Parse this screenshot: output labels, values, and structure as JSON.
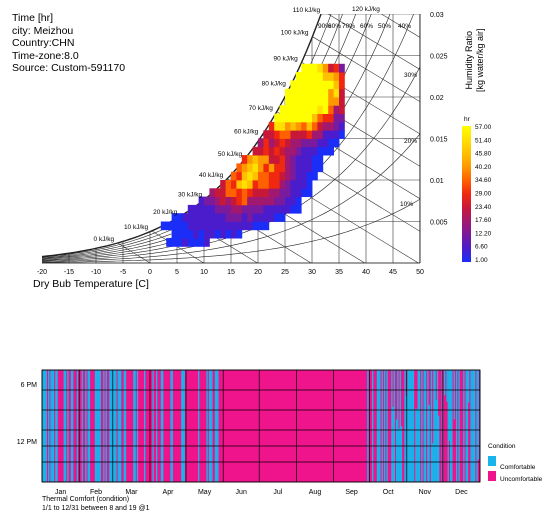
{
  "info": {
    "title": "Time [hr]",
    "city": "city: Meizhou",
    "country": "Country:CHN",
    "timezone": "Time-zone:8.0",
    "source": "Source: Custom-591170"
  },
  "psychro": {
    "xlabel": "Dry Bub Temperature [C]",
    "ylabel_line1": "Humidity Ratio",
    "ylabel_line2": "[kg water/kg air]",
    "x_ticks": [
      "-20",
      "-15",
      "-10",
      "-5",
      "0",
      "5",
      "10",
      "15",
      "20",
      "25",
      "30",
      "35",
      "40",
      "45",
      "50"
    ],
    "y_ticks": [
      "0.03",
      "0.025",
      "0.02",
      "0.015",
      "0.01",
      "0.005"
    ],
    "enthalpy_labels": [
      "0 kJ/kg",
      "10 kJ/kg",
      "20 kJ/kg",
      "30 kJ/kg",
      "40 kJ/kg",
      "50 kJ/kg",
      "60 kJ/kg",
      "70 kJ/kg",
      "80 kJ/kg",
      "90 kJ/kg",
      "100 kJ/kg",
      "110 kJ/kg",
      "120 kJ/kg"
    ],
    "rh_labels": [
      "90%",
      "80%",
      "70%",
      "60%",
      "50%",
      "40%",
      "30%",
      "20%",
      "10%"
    ],
    "legend_title": "hr",
    "legend_values": [
      "57.00",
      "51.40",
      "45.80",
      "40.20",
      "34.60",
      "29.00",
      "23.40",
      "17.60",
      "12.20",
      "6.60",
      "1.00"
    ],
    "legend_colors": [
      "#ffff00",
      "#ffe000",
      "#ffc000",
      "#ff9800",
      "#ff6000",
      "#f02810",
      "#c81838",
      "#a01870",
      "#7a1a9c",
      "#4a1ccc",
      "#1a2ef8"
    ]
  },
  "chart_data": [
    {
      "type": "heatmap",
      "title": "Time [hr]",
      "xlabel": "Dry Bub Temperature [C]",
      "ylabel": "Humidity Ratio [kg water/kg air]",
      "xlim": [
        -20,
        50
      ],
      "ylim": [
        0,
        0.03
      ],
      "colorbar": {
        "label": "hr",
        "min": 1.0,
        "max": 57.0
      },
      "hot_spots": [
        {
          "x": 27,
          "y": 0.02,
          "hours": 57
        },
        {
          "x": 29,
          "y": 0.021,
          "hours": 50
        },
        {
          "x": 25,
          "y": 0.018,
          "hours": 40
        },
        {
          "x": 20,
          "y": 0.011,
          "hours": 30
        },
        {
          "x": 16,
          "y": 0.009,
          "hours": 25
        }
      ]
    },
    {
      "type": "heatmap",
      "title": "Thermal Comfort (condition)",
      "subtitle": "1/1 to 12/31 between 8 and 19 @1",
      "x_categories": [
        "Jan",
        "Feb",
        "Mar",
        "Apr",
        "May",
        "Jun",
        "Jul",
        "Aug",
        "Sep",
        "Oct",
        "Nov",
        "Dec"
      ],
      "y_ticks": [
        "6 PM",
        "12 PM"
      ],
      "hour_range": [
        8,
        19
      ],
      "legend_title": "Condition",
      "categories": [
        "Comfortable",
        "Uncomfortable"
      ],
      "colors": [
        "#18b4ec",
        "#f0148c"
      ],
      "monthly_comfortable_fraction": [
        0.45,
        0.5,
        0.45,
        0.35,
        0.15,
        0.0,
        0.0,
        0.0,
        0.02,
        0.72,
        0.85,
        0.55
      ]
    }
  ],
  "comfort": {
    "months": [
      "Jan",
      "Feb",
      "Mar",
      "Apr",
      "May",
      "Jun",
      "Jul",
      "Aug",
      "Sep",
      "Oct",
      "Nov",
      "Dec"
    ],
    "y_ticks": [
      "6 PM",
      "12 PM"
    ],
    "caption1": "Thermal Comfort (condition)",
    "caption2": "1/1 to 12/31 between 8 and 19 @1",
    "legend_title": "Condition",
    "legend_items": [
      "Comfortable",
      "Uncomfortable"
    ],
    "colors": {
      "comfortable": "#18b4ec",
      "uncomfortable": "#f0148c"
    }
  }
}
